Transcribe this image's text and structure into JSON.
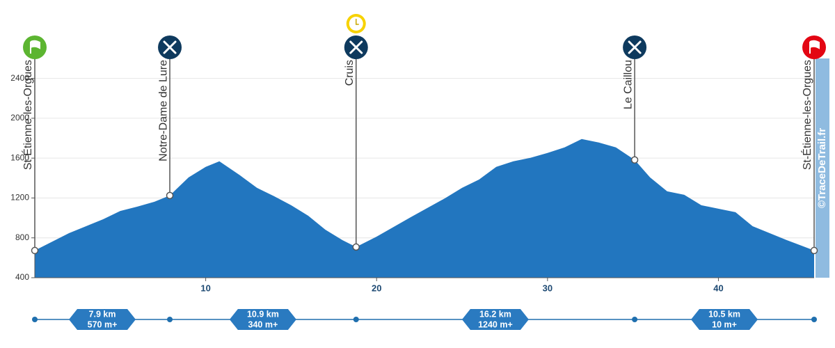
{
  "chart_data": {
    "type": "area",
    "x": [
      0,
      2,
      4,
      5,
      6,
      7,
      7.9,
      9,
      10,
      10.8,
      12,
      13,
      14,
      15,
      16,
      17,
      18,
      18.8,
      20,
      22,
      24,
      25,
      26,
      27,
      28,
      29,
      30,
      31,
      32,
      33,
      34,
      35.1,
      36,
      37,
      38,
      39,
      40,
      41,
      42,
      43,
      44,
      45.6
    ],
    "series": [
      {
        "color": "#2276bf",
        "values": [
          673,
          847,
          987,
          1070,
          1113,
          1162,
          1225,
          1407,
          1512,
          1568,
          1428,
          1302,
          1218,
          1127,
          1022,
          882,
          777,
          708,
          812,
          1008,
          1197,
          1302,
          1386,
          1512,
          1568,
          1603,
          1652,
          1708,
          1792,
          1757,
          1708,
          1582,
          1407,
          1267,
          1232,
          1127,
          1092,
          1057,
          917,
          847,
          777,
          673
        ]
      }
    ],
    "xlim": [
      0,
      45.6
    ],
    "ylim": [
      400,
      2600
    ],
    "xticks": [
      10,
      20,
      30,
      40
    ],
    "yticks": [
      400,
      800,
      1200,
      1600,
      2000,
      2400
    ],
    "grid": true,
    "waypoints": [
      {
        "name": "St-Étienne-les-Orgues",
        "x": 0,
        "y": 673,
        "color": "#5cb531"
      },
      {
        "name": "Notre-Dame de Lure",
        "x": 7.9,
        "y": 1225,
        "color": "#0e3a5e"
      },
      {
        "name": "Cruis",
        "x": 18.8,
        "y": 708,
        "color": "#0e3a5e"
      },
      {
        "name": "Le Caillou",
        "x": 35.1,
        "y": 1582,
        "color": "#0e3a5e"
      },
      {
        "name": "St-Étienne-les-Orgues",
        "x": 45.6,
        "y": 673,
        "color": "#e30613"
      }
    ],
    "segments": [
      {
        "distance": "7.9 km",
        "gain": "570 m+"
      },
      {
        "distance": "10.9 km",
        "gain": "340 m+"
      },
      {
        "distance": "16.2 km",
        "gain": "1240 m+"
      },
      {
        "distance": "10.5 km",
        "gain": "10 m+"
      }
    ],
    "watermark": "©TraceDeTrail.fr"
  }
}
